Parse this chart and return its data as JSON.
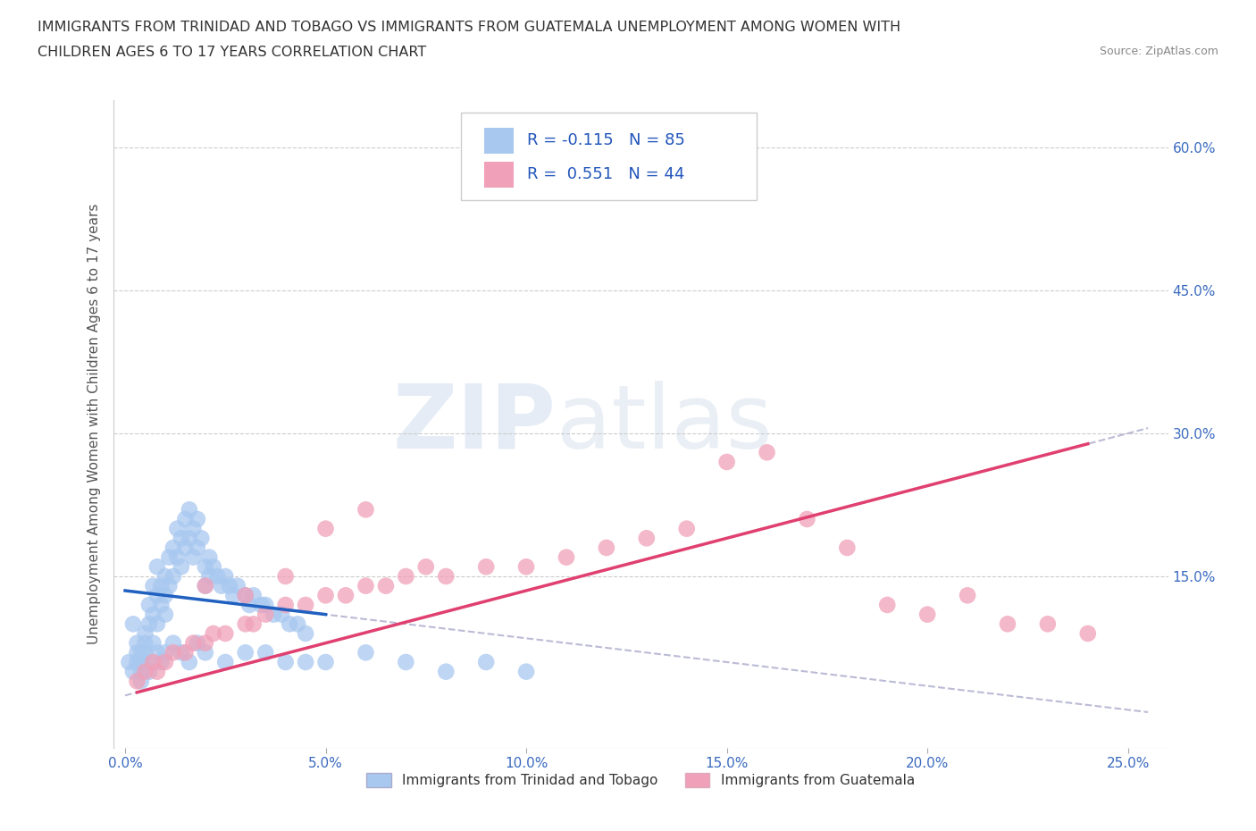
{
  "title_line1": "IMMIGRANTS FROM TRINIDAD AND TOBAGO VS IMMIGRANTS FROM GUATEMALA UNEMPLOYMENT AMONG WOMEN WITH",
  "title_line2": "CHILDREN AGES 6 TO 17 YEARS CORRELATION CHART",
  "source": "Source: ZipAtlas.com",
  "ylabel": "Unemployment Among Women with Children Ages 6 to 17 years",
  "xlabel_ticks": [
    "0.0%",
    "5.0%",
    "10.0%",
    "15.0%",
    "20.0%",
    "25.0%"
  ],
  "xlabel_vals": [
    0.0,
    5.0,
    10.0,
    15.0,
    20.0,
    25.0
  ],
  "ylabel_ticks_right": [
    "60.0%",
    "45.0%",
    "30.0%",
    "15.0%"
  ],
  "ylabel_vals_right": [
    60.0,
    45.0,
    30.0,
    15.0
  ],
  "ylim": [
    -3,
    65
  ],
  "xlim": [
    -0.3,
    26
  ],
  "R_tt": -0.115,
  "N_tt": 85,
  "R_gt": 0.551,
  "N_gt": 44,
  "color_tt": "#a8c8f0",
  "color_gt": "#f0a0b8",
  "legend_label_tt": "Immigrants from Trinidad and Tobago",
  "legend_label_gt": "Immigrants from Guatemala",
  "background_color": "#ffffff",
  "watermark_zip": "ZIP",
  "watermark_atlas": "atlas",
  "tt_x": [
    0.2,
    0.3,
    0.3,
    0.4,
    0.4,
    0.4,
    0.5,
    0.5,
    0.5,
    0.6,
    0.6,
    0.7,
    0.7,
    0.8,
    0.8,
    0.8,
    0.9,
    0.9,
    1.0,
    1.0,
    1.0,
    1.1,
    1.1,
    1.2,
    1.2,
    1.3,
    1.3,
    1.4,
    1.4,
    1.5,
    1.5,
    1.6,
    1.6,
    1.7,
    1.7,
    1.8,
    1.8,
    1.9,
    2.0,
    2.0,
    2.1,
    2.1,
    2.2,
    2.3,
    2.4,
    2.5,
    2.6,
    2.7,
    2.8,
    3.0,
    3.1,
    3.2,
    3.4,
    3.5,
    3.7,
    3.9,
    4.1,
    4.3,
    4.5,
    0.1,
    0.2,
    0.3,
    0.4,
    0.5,
    0.6,
    0.7,
    0.8,
    0.9,
    1.0,
    1.2,
    1.4,
    1.6,
    1.8,
    2.0,
    2.5,
    3.0,
    3.5,
    4.0,
    4.5,
    5.0,
    6.0,
    7.0,
    8.0,
    9.0,
    10.0
  ],
  "tt_y": [
    10,
    8,
    6,
    7,
    5,
    4,
    9,
    8,
    7,
    12,
    10,
    14,
    11,
    16,
    13,
    10,
    14,
    12,
    15,
    13,
    11,
    17,
    14,
    18,
    15,
    20,
    17,
    19,
    16,
    21,
    18,
    22,
    19,
    20,
    17,
    21,
    18,
    19,
    16,
    14,
    17,
    15,
    16,
    15,
    14,
    15,
    14,
    13,
    14,
    13,
    12,
    13,
    12,
    12,
    11,
    11,
    10,
    10,
    9,
    6,
    5,
    7,
    6,
    6,
    5,
    8,
    7,
    6,
    7,
    8,
    7,
    6,
    8,
    7,
    6,
    7,
    7,
    6,
    6,
    6,
    7,
    6,
    5,
    6,
    5
  ],
  "gt_x": [
    0.3,
    0.5,
    0.7,
    0.8,
    1.0,
    1.2,
    1.5,
    1.7,
    2.0,
    2.2,
    2.5,
    3.0,
    3.2,
    3.5,
    4.0,
    4.5,
    5.0,
    5.5,
    6.0,
    6.5,
    7.0,
    7.5,
    8.0,
    9.0,
    10.0,
    11.0,
    12.0,
    13.0,
    14.0,
    15.0,
    16.0,
    17.0,
    18.0,
    19.0,
    20.0,
    21.0,
    22.0,
    23.0,
    24.0,
    2.0,
    3.0,
    4.0,
    5.0,
    6.0
  ],
  "gt_y": [
    4,
    5,
    6,
    5,
    6,
    7,
    7,
    8,
    8,
    9,
    9,
    10,
    10,
    11,
    12,
    12,
    13,
    13,
    14,
    14,
    15,
    16,
    15,
    16,
    16,
    17,
    18,
    19,
    20,
    27,
    28,
    21,
    18,
    12,
    11,
    13,
    10,
    10,
    9,
    14,
    13,
    15,
    20,
    22
  ]
}
